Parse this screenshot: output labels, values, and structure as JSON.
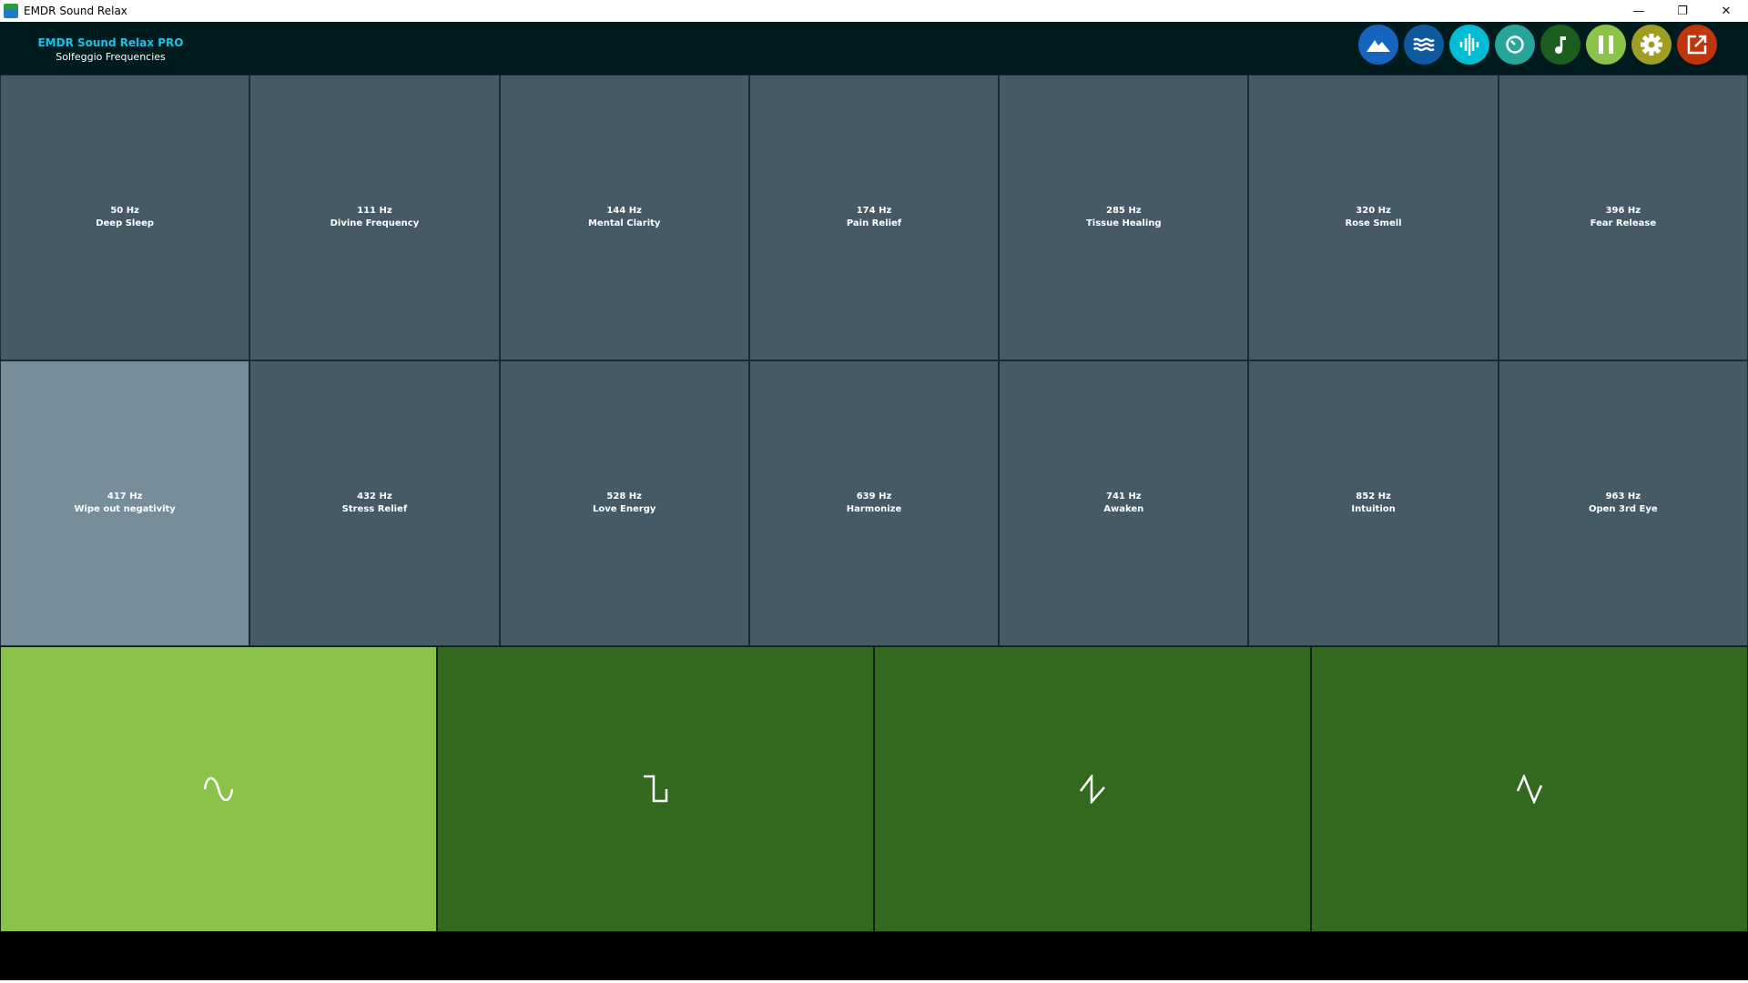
{
  "window": {
    "title": "EMDR Sound Relax",
    "controls": [
      "minimize",
      "restore",
      "close"
    ]
  },
  "header": {
    "title": "EMDR Sound Relax PRO",
    "subtitle": "Solfeggio Frequencies"
  },
  "toolbar": [
    {
      "icon": "mountain-icon",
      "color": "#1565c0"
    },
    {
      "icon": "waves-icon",
      "color": "#0d5a9e"
    },
    {
      "icon": "audio-wave-icon",
      "color": "#00bcd4"
    },
    {
      "icon": "timer-icon",
      "color": "#26a69a"
    },
    {
      "icon": "music-note-icon",
      "color": "#1b5e20"
    },
    {
      "icon": "pause-icon",
      "color": "#8bc34a"
    },
    {
      "icon": "gear-icon",
      "color": "#9e9d24"
    },
    {
      "icon": "external-link-icon",
      "color": "#bf360c"
    }
  ],
  "frequencies": [
    {
      "hz": "50 Hz",
      "label": "Deep Sleep"
    },
    {
      "hz": "111 Hz",
      "label": "Divine Frequency"
    },
    {
      "hz": "144 Hz",
      "label": "Mental Clarity"
    },
    {
      "hz": "174 Hz",
      "label": "Pain Relief"
    },
    {
      "hz": "285 Hz",
      "label": "Tissue Healing"
    },
    {
      "hz": "320 Hz",
      "label": "Rose Smell"
    },
    {
      "hz": "396 Hz",
      "label": "Fear Release"
    },
    {
      "hz": "417 Hz",
      "label": "Wipe out negativity",
      "selected": true
    },
    {
      "hz": "432 Hz",
      "label": "Stress Relief"
    },
    {
      "hz": "528 Hz",
      "label": "Love Energy"
    },
    {
      "hz": "639 Hz",
      "label": "Harmonize"
    },
    {
      "hz": "741 Hz",
      "label": "Awaken"
    },
    {
      "hz": "852 Hz",
      "label": "Intuition"
    },
    {
      "hz": "963 Hz",
      "label": "Open 3rd Eye"
    }
  ],
  "waveforms": [
    {
      "icon": "sine-wave-icon",
      "selected": true
    },
    {
      "icon": "square-wave-icon"
    },
    {
      "icon": "sawtooth-wave-icon"
    },
    {
      "icon": "triangle-wave-icon"
    }
  ]
}
